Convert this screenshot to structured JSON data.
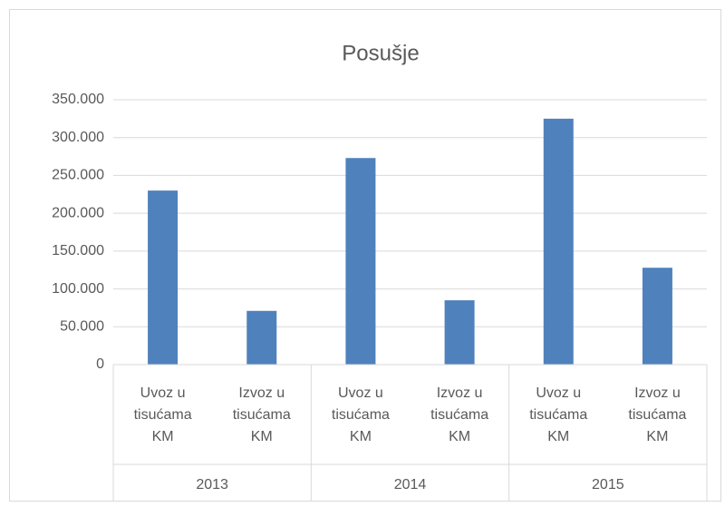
{
  "chart_data": {
    "type": "bar",
    "title": "Posušje",
    "categories": [
      "Uvoz u tisućama KM",
      "Izvoz u tisućama KM",
      "Uvoz u tisućama KM",
      "Izvoz u tisućama KM",
      "Uvoz u tisućama KM",
      "Izvoz u tisućama KM"
    ],
    "group_labels": [
      "2013",
      "2014",
      "2015"
    ],
    "values": [
      230000,
      71000,
      273000,
      85000,
      325000,
      128000
    ],
    "color": "#4f81bd",
    "ylim": [
      0,
      350000
    ],
    "yticks": [
      0,
      {
        "value": 50000,
        "label": "50.000"
      },
      {
        "value": 100000,
        "label": "100.000"
      },
      {
        "value": 150000,
        "label": "150.000"
      },
      {
        "value": 200000,
        "label": "200.000"
      },
      {
        "value": 250000,
        "label": "250.000"
      },
      {
        "value": 300000,
        "label": "300.000"
      },
      {
        "value": 350000,
        "label": "350.000"
      }
    ],
    "grid": true
  }
}
